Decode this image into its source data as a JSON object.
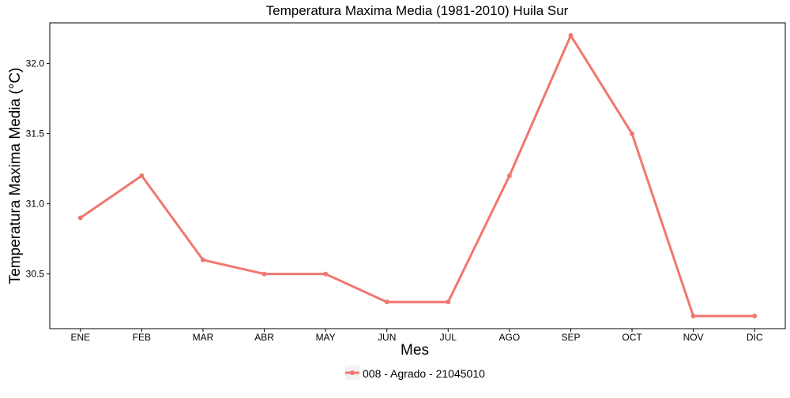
{
  "chart_data": {
    "type": "line",
    "title": "Temperatura Maxima Media (1981-2010)  Huila Sur",
    "xlabel": "Mes",
    "ylabel": "Temperatura Maxima Media  (°C)",
    "categories": [
      "ENE",
      "FEB",
      "MAR",
      "ABR",
      "MAY",
      "JUN",
      "JUL",
      "AGO",
      "SEP",
      "OCT",
      "NOV",
      "DIC"
    ],
    "series": [
      {
        "name": "008 - Agrado - 21045010",
        "values": [
          30.9,
          31.2,
          30.6,
          30.5,
          30.5,
          30.3,
          30.3,
          31.2,
          32.2,
          31.5,
          30.2,
          30.2
        ]
      }
    ],
    "ylim": [
      30.11,
      32.29
    ],
    "yticks": [
      "30.5",
      "31.0",
      "31.5",
      "32.0"
    ],
    "grid": false,
    "legend_position": "bottom",
    "series_color": "#F0776F",
    "axis_color": "#000000"
  }
}
